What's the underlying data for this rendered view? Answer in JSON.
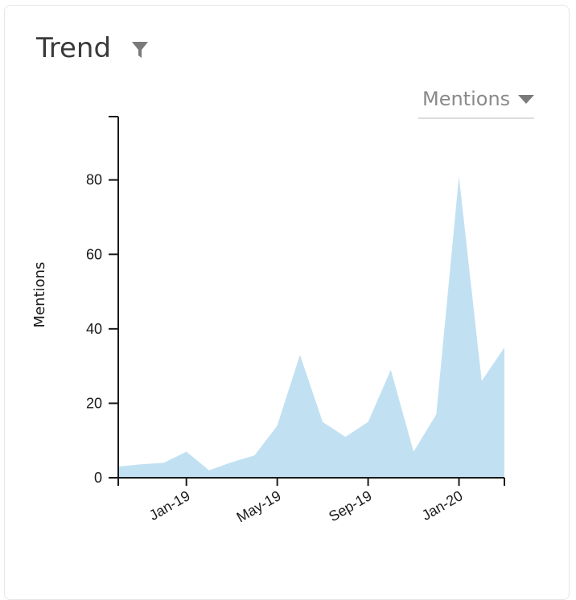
{
  "card": {
    "title": "Trend",
    "filter_icon": "filter-icon"
  },
  "metric_select": {
    "selected": "Mentions",
    "arrow_icon": "caret-down-icon"
  },
  "colors": {
    "area_fill": "#c1e1f2",
    "axis": "#1a1a1a",
    "icon": "#7a7a7a"
  },
  "chart_data": {
    "type": "area",
    "ylabel": "Mentions",
    "xlabel": "",
    "ylim": [
      0,
      97
    ],
    "yticks": [
      0,
      20,
      40,
      60,
      80
    ],
    "x_start": "2018-10",
    "x_end": "2020-03",
    "xticks": [
      {
        "date": "2019-01",
        "label": "Jan-19"
      },
      {
        "date": "2019-05",
        "label": "May-19"
      },
      {
        "date": "2019-09",
        "label": "Sep-19"
      },
      {
        "date": "2020-01",
        "label": "Jan-20"
      }
    ],
    "series": [
      {
        "points": [
          {
            "date": "2018-10",
            "value": 3
          },
          {
            "date": "2018-11",
            "value": 3.6
          },
          {
            "date": "2018-12",
            "value": 4
          },
          {
            "date": "2019-01",
            "value": 7
          },
          {
            "date": "2019-02",
            "value": 2
          },
          {
            "date": "2019-03",
            "value": 4.2
          },
          {
            "date": "2019-04",
            "value": 6
          },
          {
            "date": "2019-05",
            "value": 14
          },
          {
            "date": "2019-06",
            "value": 33
          },
          {
            "date": "2019-07",
            "value": 15
          },
          {
            "date": "2019-08",
            "value": 11
          },
          {
            "date": "2019-09",
            "value": 15
          },
          {
            "date": "2019-10",
            "value": 29
          },
          {
            "date": "2019-11",
            "value": 7
          },
          {
            "date": "2019-12",
            "value": 17
          },
          {
            "date": "2020-01",
            "value": 81
          },
          {
            "date": "2020-02",
            "value": 26
          },
          {
            "date": "2020-03",
            "value": 35
          }
        ]
      }
    ],
    "grid": false,
    "legend": "none"
  }
}
